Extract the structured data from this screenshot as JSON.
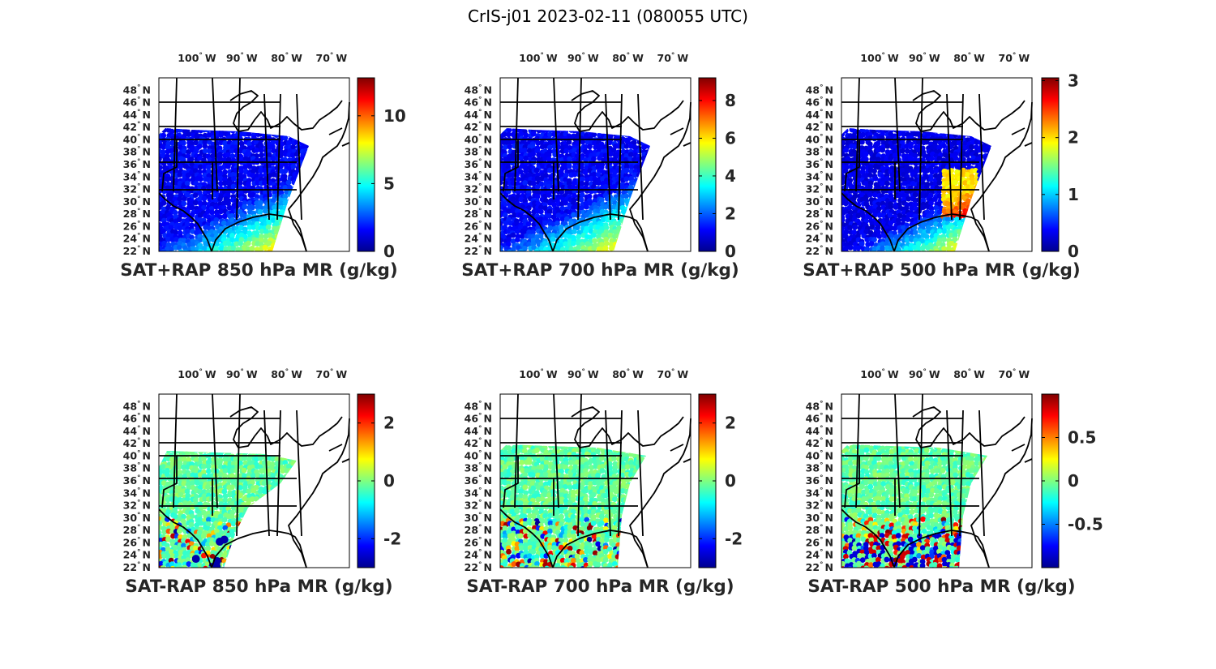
{
  "figure": {
    "title": "CrIS-j01 2023-02-11 (080055 UTC)",
    "colormap": [
      "#00008f",
      "#0000ff",
      "#0080ff",
      "#00ffff",
      "#80ff80",
      "#ffff00",
      "#ff8000",
      "#ff0000",
      "#800000"
    ],
    "lon_ticks": [
      {
        "deg": "100",
        "hemi": "W",
        "value": -100
      },
      {
        "deg": "90",
        "hemi": "W",
        "value": -90
      },
      {
        "deg": "80",
        "hemi": "W",
        "value": -80
      },
      {
        "deg": "70",
        "hemi": "W",
        "value": -70
      }
    ],
    "lat_ticks": [
      {
        "deg": "48",
        "hemi": "N",
        "value": 48
      },
      {
        "deg": "46",
        "hemi": "N",
        "value": 46
      },
      {
        "deg": "44",
        "hemi": "N",
        "value": 44
      },
      {
        "deg": "42",
        "hemi": "N",
        "value": 42
      },
      {
        "deg": "40",
        "hemi": "N",
        "value": 40
      },
      {
        "deg": "38",
        "hemi": "N",
        "value": 38
      },
      {
        "deg": "36",
        "hemi": "N",
        "value": 36
      },
      {
        "deg": "34",
        "hemi": "N",
        "value": 34
      },
      {
        "deg": "32",
        "hemi": "N",
        "value": 32
      },
      {
        "deg": "30",
        "hemi": "N",
        "value": 30
      },
      {
        "deg": "28",
        "hemi": "N",
        "value": 28
      },
      {
        "deg": "26",
        "hemi": "N",
        "value": 26
      },
      {
        "deg": "24",
        "hemi": "N",
        "value": 24
      },
      {
        "deg": "22",
        "hemi": "N",
        "value": 22
      }
    ],
    "panels": [
      {
        "id": "sat-rap-sum-850",
        "title": "SAT+RAP 850 hPa MR (g/kg)",
        "kind": "total",
        "clim": [
          0,
          12.8
        ],
        "cb_ticks": [
          {
            "label": "0",
            "value": 0
          },
          {
            "label": "5",
            "value": 5
          },
          {
            "label": "10",
            "value": 10
          }
        ]
      },
      {
        "id": "sat-rap-sum-700",
        "title": "SAT+RAP 700 hPa MR (g/kg)",
        "kind": "total",
        "clim": [
          0,
          9.2
        ],
        "cb_ticks": [
          {
            "label": "0",
            "value": 0
          },
          {
            "label": "2",
            "value": 2
          },
          {
            "label": "4",
            "value": 4
          },
          {
            "label": "6",
            "value": 6
          },
          {
            "label": "8",
            "value": 8
          }
        ]
      },
      {
        "id": "sat-rap-sum-500",
        "title": "SAT+RAP 500 hPa MR (g/kg)",
        "kind": "total",
        "clim": [
          0,
          3.05
        ],
        "cb_ticks": [
          {
            "label": "0",
            "value": 0
          },
          {
            "label": "1",
            "value": 1
          },
          {
            "label": "2",
            "value": 2
          },
          {
            "label": "3",
            "value": 3
          }
        ]
      },
      {
        "id": "sat-rap-diff-850",
        "title": "SAT-RAP 850 hPa MR (g/kg)",
        "kind": "diff",
        "clim": [
          -3,
          3
        ],
        "cb_ticks": [
          {
            "label": "-2",
            "value": -2
          },
          {
            "label": "0",
            "value": 0
          },
          {
            "label": "2",
            "value": 2
          }
        ]
      },
      {
        "id": "sat-rap-diff-700",
        "title": "SAT-RAP 700 hPa MR (g/kg)",
        "kind": "diff",
        "clim": [
          -3,
          3
        ],
        "cb_ticks": [
          {
            "label": "-2",
            "value": -2
          },
          {
            "label": "0",
            "value": 0
          },
          {
            "label": "2",
            "value": 2
          }
        ]
      },
      {
        "id": "sat-rap-diff-500",
        "title": "SAT-RAP 500 hPa MR (g/kg)",
        "kind": "diff",
        "clim": [
          -1,
          1
        ],
        "cb_ticks": [
          {
            "label": "-0.5",
            "value": -0.5
          },
          {
            "label": "0",
            "value": 0
          },
          {
            "label": "0.5",
            "value": 0.5
          }
        ]
      }
    ]
  }
}
